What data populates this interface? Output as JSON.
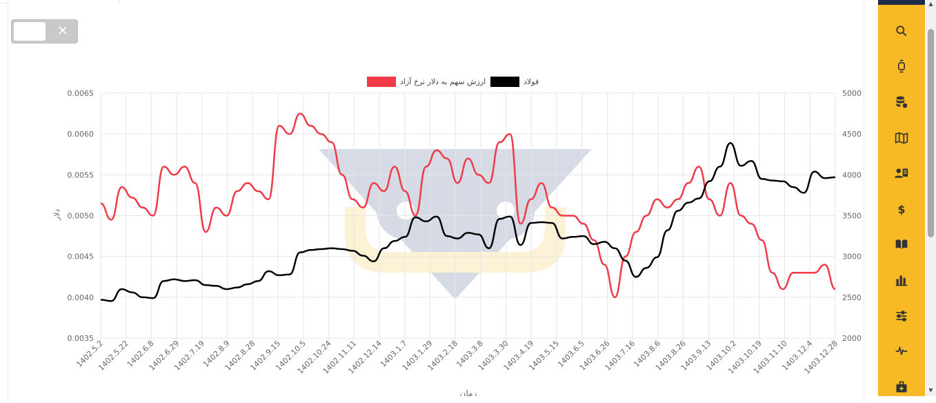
{
  "toggle": {
    "close_symbol": "✕"
  },
  "chart_data": {
    "type": "line",
    "legend": {
      "placement": "top-center",
      "entries": [
        {
          "label": "فولاد",
          "color": "#000000"
        },
        {
          "label": "ارزش سهم به دلار نرخ آزاد",
          "color": "#f03a47"
        }
      ]
    },
    "xlabel": "زمان",
    "ylabel_left": "دلار",
    "y_left": {
      "min": 0.0035,
      "max": 0.0065,
      "ticks": [
        "0.0065",
        "0.0060",
        "0.0055",
        "0.0050",
        "0.0045",
        "0.0040",
        "0.0035"
      ]
    },
    "y_right": {
      "min": 2000,
      "max": 5000,
      "ticks": [
        "5000",
        "4500",
        "4000",
        "3500",
        "3000",
        "2500",
        "2000"
      ]
    },
    "grid": true,
    "x_tick_labels": [
      "1402.5.2",
      "1402.5.22",
      "1402.6.8",
      "1402.6.29",
      "1402.7.19",
      "1402.8.9",
      "1402.8.28",
      "1402.9.15",
      "1402.10.5",
      "1402.10.24",
      "1402.11.11",
      "1402.12.14",
      "1403.1.7",
      "1403.1.29",
      "1403.2.18",
      "1403.3.8",
      "1403.3.30",
      "1403.4.19",
      "1403.5.15",
      "1403.6.5",
      "1403.6.26",
      "1403.7.16",
      "1403.8.6",
      "1403.8.26",
      "1403.9.13",
      "1403.10.2",
      "1403.10.19",
      "1403.11.10",
      "1403.12.4",
      "1403.12.28"
    ],
    "series": [
      {
        "name": "فولاد",
        "axis": "right",
        "color": "#000000",
        "values": [
          2470,
          2455,
          2600,
          2560,
          2500,
          2490,
          2700,
          2720,
          2700,
          2710,
          2650,
          2640,
          2600,
          2620,
          2660,
          2700,
          2820,
          2770,
          2780,
          3050,
          3080,
          3090,
          3100,
          3090,
          3070,
          3010,
          2940,
          3100,
          3190,
          3240,
          3480,
          3430,
          3490,
          3250,
          3220,
          3290,
          3270,
          3100,
          3460,
          3490,
          3140,
          3410,
          3420,
          3410,
          3220,
          3240,
          3250,
          3150,
          3180,
          3100,
          2950,
          2750,
          2860,
          2990,
          3320,
          3560,
          3660,
          3710,
          3920,
          4100,
          4390,
          4110,
          4170,
          3950,
          3930,
          3920,
          3850,
          3780,
          4040,
          3960,
          3970
        ]
      },
      {
        "name": "ارزش سهم به دلار نرخ آزاد",
        "axis": "left",
        "color": "#f03a47",
        "values": [
          0.00515,
          0.00495,
          0.00535,
          0.00522,
          0.0051,
          0.005,
          0.0056,
          0.0055,
          0.0056,
          0.0054,
          0.0048,
          0.0051,
          0.005,
          0.0053,
          0.0054,
          0.0053,
          0.0052,
          0.0061,
          0.006,
          0.00625,
          0.0061,
          0.006,
          0.0059,
          0.0055,
          0.0052,
          0.0051,
          0.0054,
          0.0053,
          0.0056,
          0.0053,
          0.005,
          0.0056,
          0.0058,
          0.0057,
          0.0054,
          0.0057,
          0.0055,
          0.0054,
          0.0059,
          0.006,
          0.0049,
          0.0052,
          0.0054,
          0.0051,
          0.005,
          0.005,
          0.0049,
          0.0047,
          0.0044,
          0.004,
          0.0045,
          0.0048,
          0.005,
          0.0052,
          0.0051,
          0.0052,
          0.0054,
          0.0056,
          0.0052,
          0.005,
          0.0054,
          0.005,
          0.0049,
          0.0047,
          0.0043,
          0.0041,
          0.0043,
          0.0043,
          0.0043,
          0.0044,
          0.0041
        ]
      }
    ]
  },
  "sidebar": {
    "icons": [
      "search-icon",
      "watch-icon",
      "database-settings-icon",
      "map-icon",
      "user-card-icon",
      "dollar-icon",
      "book-icon",
      "bar-chart-icon",
      "sliders-icon",
      "pulse-icon",
      "briefcase-plus-icon"
    ],
    "accent_color": "#f7b924",
    "topbar_color": "#1e2a4a"
  }
}
